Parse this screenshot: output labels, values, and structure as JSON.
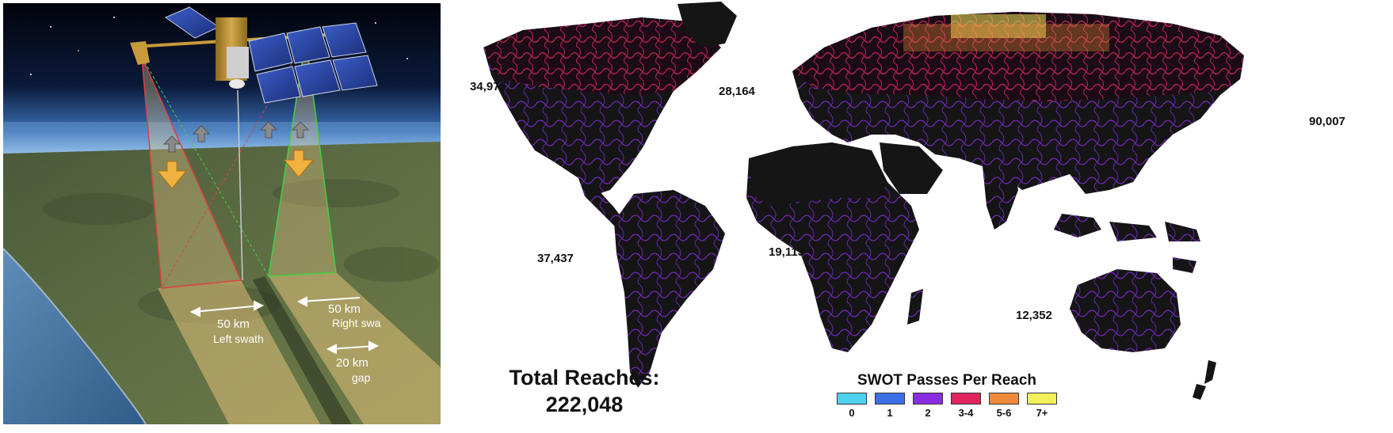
{
  "left_figure": {
    "left_swath_width": "50 km",
    "left_swath_label": "Left swath",
    "right_swath_width": "50 km",
    "right_swath_label": "Right swa",
    "gap_width": "20 km",
    "gap_label": "gap"
  },
  "map": {
    "region_counts": [
      {
        "region": "north-america",
        "value": "34,975"
      },
      {
        "region": "europe",
        "value": "28,164"
      },
      {
        "region": "asia",
        "value": "90,007"
      },
      {
        "region": "south-america",
        "value": "37,437"
      },
      {
        "region": "africa",
        "value": "19,113"
      },
      {
        "region": "oceania",
        "value": "12,352"
      }
    ],
    "total_label": "Total Reaches:",
    "total_value": "222,048",
    "legend": {
      "title": "SWOT Passes Per Reach",
      "items": [
        {
          "label": "0",
          "color": "#4fd2f0"
        },
        {
          "label": "1",
          "color": "#3d6fe8"
        },
        {
          "label": "2",
          "color": "#8a2be2"
        },
        {
          "label": "3-4",
          "color": "#e0245e"
        },
        {
          "label": "5-6",
          "color": "#f08a3a"
        },
        {
          "label": "7+",
          "color": "#f2f05a"
        }
      ]
    }
  }
}
